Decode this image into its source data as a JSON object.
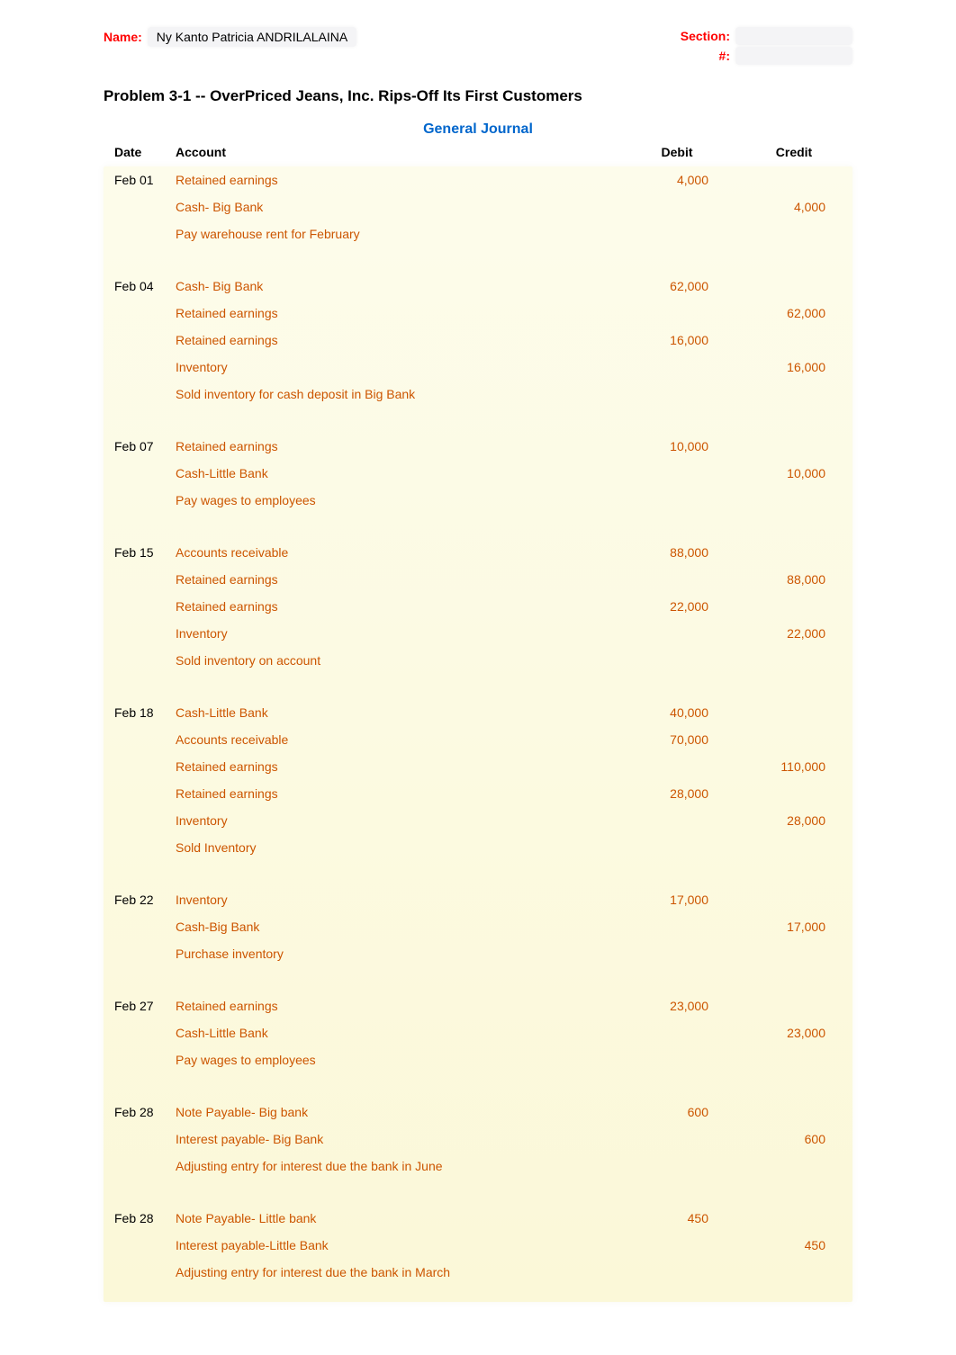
{
  "header": {
    "name_label": "Name:",
    "name_value": "Ny Kanto Patricia ANDRILALAINA",
    "section_label": "Section:",
    "number_label": "#:"
  },
  "problem_title": "Problem 3-1 -- OverPriced Jeans, Inc. Rips-Off Its First Customers",
  "journal_title": "General Journal",
  "columns": {
    "date": "Date",
    "account": "Account",
    "debit": "Debit",
    "credit": "Credit"
  },
  "colors": {
    "red_label": "#ff0000",
    "blue_title": "#0066cc",
    "orange_text": "#cc5500",
    "highlight_bg_light": "#fdfceb",
    "highlight_bg_dark": "#fbf8d8",
    "shaded_input": "#f4f4f6",
    "page_bg": "#ffffff",
    "black": "#000000"
  },
  "fonts": {
    "base_family": "Arial, Helvetica, sans-serif",
    "base_size": 14,
    "title_size": 17,
    "journal_title_size": 16
  },
  "entries": [
    {
      "date": "Feb 01",
      "lines": [
        {
          "account": "Retained earnings",
          "debit": "4,000",
          "credit": ""
        },
        {
          "account": "Cash- Big Bank",
          "debit": "",
          "credit": "4,000"
        },
        {
          "account": "Pay warehouse rent for February",
          "debit": "",
          "credit": ""
        }
      ]
    },
    {
      "date": "Feb 04",
      "lines": [
        {
          "account": "Cash- Big Bank",
          "debit": "62,000",
          "credit": ""
        },
        {
          "account": "Retained earnings",
          "debit": "",
          "credit": "62,000"
        },
        {
          "account": "Retained earnings",
          "debit": "16,000",
          "credit": ""
        },
        {
          "account": "Inventory",
          "debit": "",
          "credit": "16,000"
        },
        {
          "account": "Sold inventory for cash deposit in Big Bank",
          "debit": "",
          "credit": ""
        }
      ]
    },
    {
      "date": "Feb 07",
      "lines": [
        {
          "account": "Retained earnings",
          "debit": "10,000",
          "credit": ""
        },
        {
          "account": "Cash-Little Bank",
          "debit": "",
          "credit": "10,000"
        },
        {
          "account": "Pay wages to employees",
          "debit": "",
          "credit": ""
        }
      ]
    },
    {
      "date": "Feb 15",
      "lines": [
        {
          "account": "Accounts receivable",
          "debit": "88,000",
          "credit": ""
        },
        {
          "account": "Retained earnings",
          "debit": "",
          "credit": "88,000"
        },
        {
          "account": "Retained earnings",
          "debit": "22,000",
          "credit": ""
        },
        {
          "account": "Inventory",
          "debit": "",
          "credit": "22,000"
        },
        {
          "account": "Sold inventory on account",
          "debit": "",
          "credit": ""
        }
      ]
    },
    {
      "date": "Feb 18",
      "lines": [
        {
          "account": "Cash-Little Bank",
          "debit": "40,000",
          "credit": ""
        },
        {
          "account": "Accounts receivable",
          "debit": "70,000",
          "credit": ""
        },
        {
          "account": "Retained earnings",
          "debit": "",
          "credit": "110,000"
        },
        {
          "account": "Retained earnings",
          "debit": "28,000",
          "credit": ""
        },
        {
          "account": "Inventory",
          "debit": "",
          "credit": "28,000"
        },
        {
          "account": "Sold Inventory",
          "debit": "",
          "credit": ""
        }
      ]
    },
    {
      "date": "Feb 22",
      "lines": [
        {
          "account": "Inventory",
          "debit": "17,000",
          "credit": ""
        },
        {
          "account": "Cash-Big Bank",
          "debit": "",
          "credit": "17,000"
        },
        {
          "account": "Purchase inventory",
          "debit": "",
          "credit": ""
        }
      ]
    },
    {
      "date": "Feb 27",
      "lines": [
        {
          "account": "Retained earnings",
          "debit": "23,000",
          "credit": ""
        },
        {
          "account": "Cash-Little Bank",
          "debit": "",
          "credit": "23,000"
        },
        {
          "account": "Pay wages to employees",
          "debit": "",
          "credit": ""
        }
      ]
    },
    {
      "date": "Feb 28",
      "lines": [
        {
          "account": "Note Payable- Big bank",
          "debit": "600",
          "credit": ""
        },
        {
          "account": "Interest payable- Big Bank",
          "debit": "",
          "credit": "600"
        },
        {
          "account": "Adjusting entry for interest due the bank in June",
          "debit": "",
          "credit": ""
        }
      ]
    },
    {
      "date": "Feb 28",
      "lines": [
        {
          "account": "Note Payable- Little bank",
          "debit": "450",
          "credit": ""
        },
        {
          "account": "Interest payable-Little Bank",
          "debit": "",
          "credit": "450"
        },
        {
          "account": "Adjusting entry for interest due the bank  in March",
          "debit": "",
          "credit": ""
        }
      ]
    }
  ]
}
